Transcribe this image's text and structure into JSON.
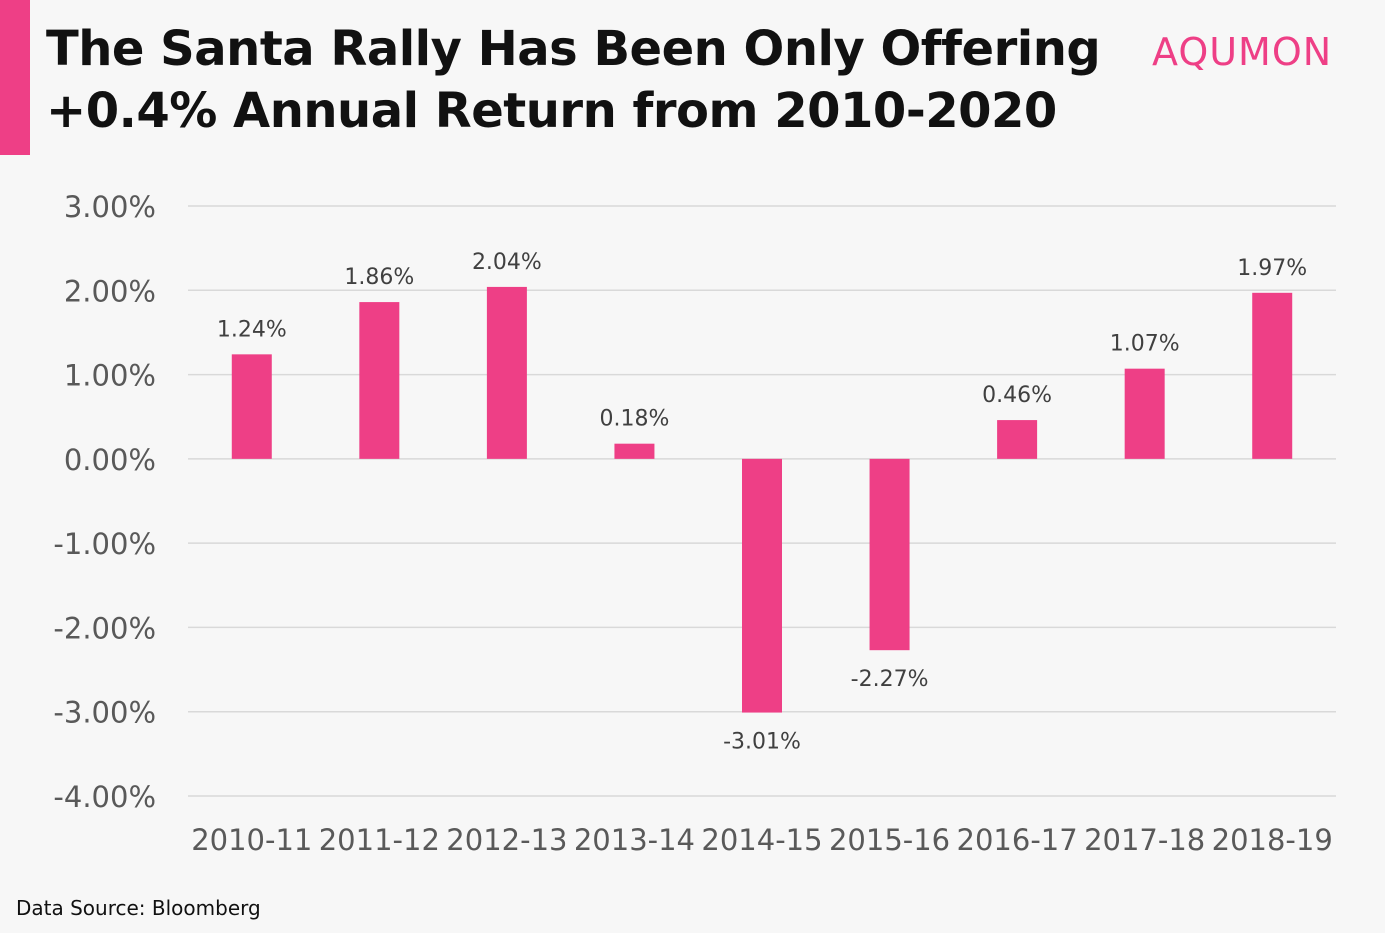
{
  "header": {
    "title_line1": "The Santa Rally Has Been Only Offering",
    "title_line2": "+0.4% Annual Return from 2010-2020",
    "brand": "AQUMON"
  },
  "footer": {
    "source": "Data Source: Bloomberg"
  },
  "colors": {
    "accent": "#ee3f86",
    "bar": "#ee3f86",
    "grid": "#d9d9d9",
    "axis_text": "#595959",
    "label_text": "#404040"
  },
  "chart_data": {
    "type": "bar",
    "title": "",
    "xlabel": "",
    "ylabel": "",
    "categories": [
      "2010-11",
      "2011-12",
      "2012-13",
      "2013-14",
      "2014-15",
      "2015-16",
      "2016-17",
      "2017-18",
      "2018-19"
    ],
    "values": [
      1.24,
      1.86,
      2.04,
      0.18,
      -3.01,
      -2.27,
      0.46,
      1.07,
      1.97
    ],
    "value_labels": [
      "1.24%",
      "1.86%",
      "2.04%",
      "0.18%",
      "-3.01%",
      "-2.27%",
      "0.46%",
      "1.07%",
      "1.97%"
    ],
    "ylim": [
      -4,
      3
    ],
    "yticks": [
      3,
      2,
      1,
      0,
      -1,
      -2,
      -3,
      -4
    ],
    "ytick_labels": [
      "3.00%",
      "2.00%",
      "1.00%",
      "0.00%",
      "-1.00%",
      "-2.00%",
      "-3.00%",
      "-4.00%"
    ],
    "grid": true,
    "legend": "none"
  }
}
